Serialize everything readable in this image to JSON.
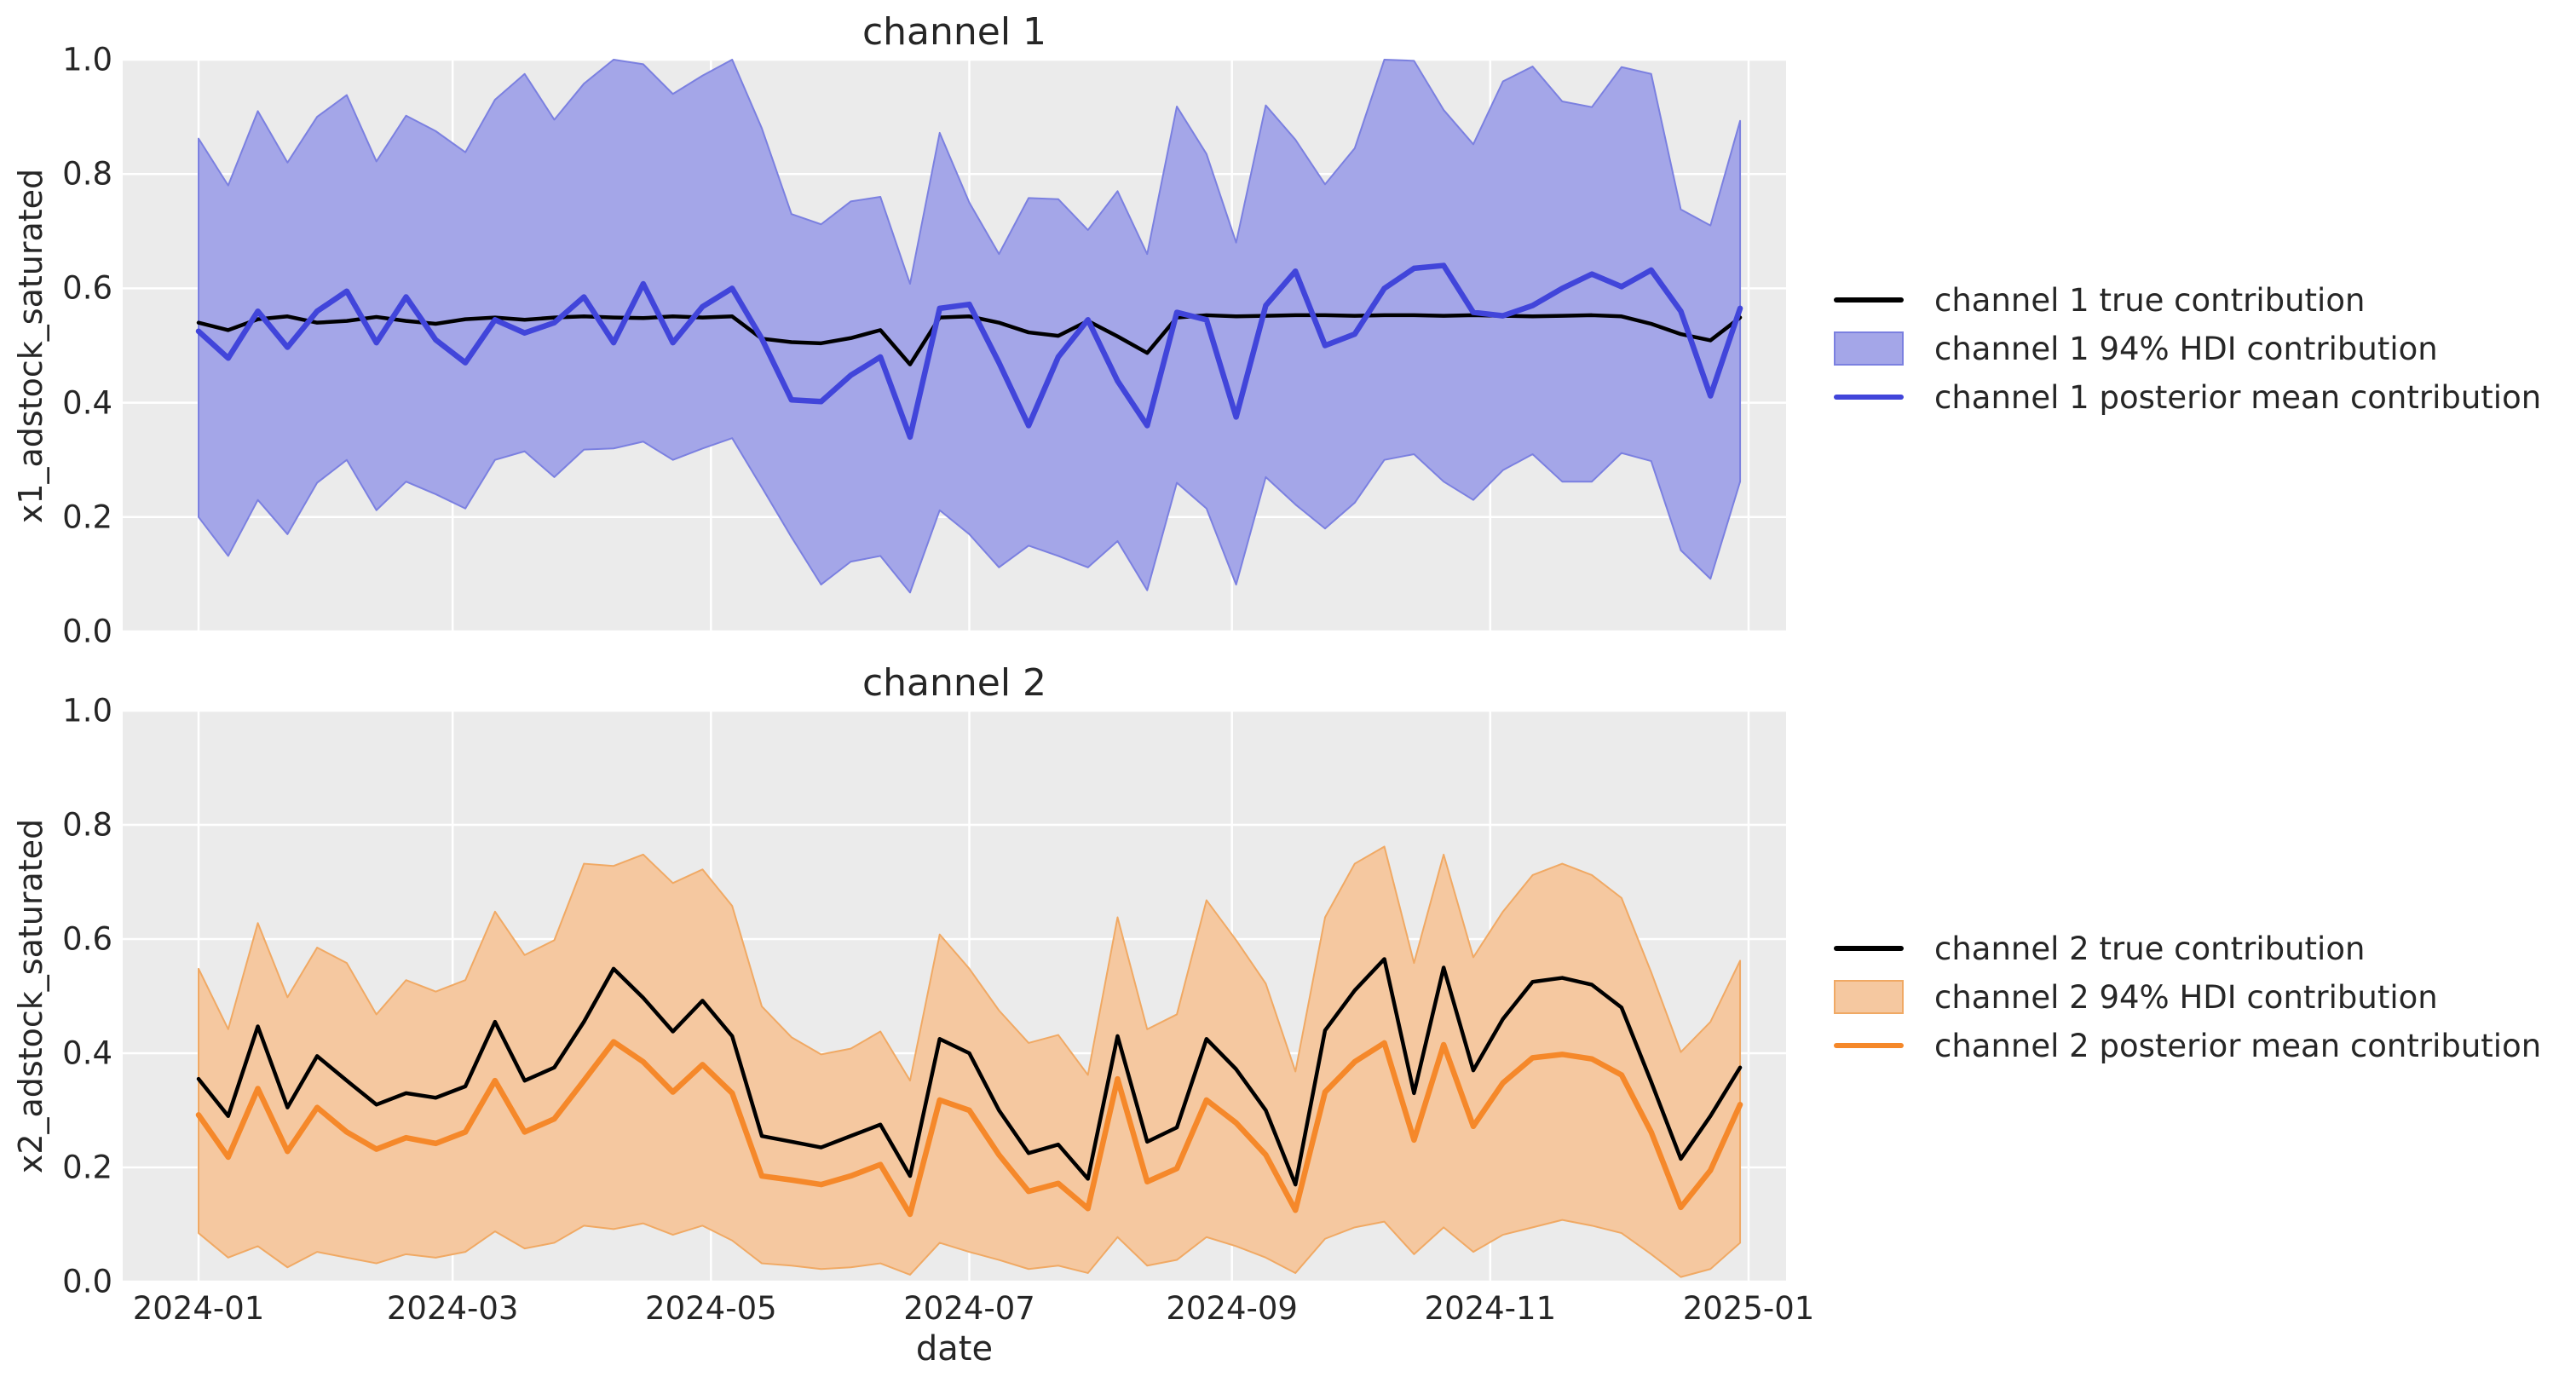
{
  "figure": {
    "background": "#ffffff",
    "plot_background": "#ebebeb",
    "grid_color": "#ffffff",
    "text_color": "#262626"
  },
  "x_ticks": {
    "labels": [
      "2024-01",
      "2024-03",
      "2024-05",
      "2024-07",
      "2024-09",
      "2024-11",
      "2025-01"
    ],
    "day_offsets": [
      0,
      60,
      121,
      182,
      244,
      305,
      366
    ]
  },
  "y_ticks": {
    "labels_top_to_bottom": [
      "1.0",
      "0.8",
      "0.6",
      "0.4",
      "0.2",
      "0.0"
    ],
    "values_top_to_bottom": [
      1.0,
      0.8,
      0.6,
      0.4,
      0.2,
      0.0
    ]
  },
  "chart_data": [
    {
      "type": "line",
      "title": "channel 1",
      "xlabel": "",
      "ylabel": "x1_adstock_saturated",
      "ylim": [
        0.0,
        1.0
      ],
      "grid": true,
      "legend_position": "right-of-plot",
      "x_dates": [
        "2024-01-01",
        "2024-01-08",
        "2024-01-15",
        "2024-01-22",
        "2024-01-29",
        "2024-02-05",
        "2024-02-12",
        "2024-02-19",
        "2024-02-26",
        "2024-03-04",
        "2024-03-11",
        "2024-03-18",
        "2024-03-25",
        "2024-04-01",
        "2024-04-08",
        "2024-04-15",
        "2024-04-22",
        "2024-04-29",
        "2024-05-06",
        "2024-05-13",
        "2024-05-20",
        "2024-05-27",
        "2024-06-03",
        "2024-06-10",
        "2024-06-17",
        "2024-06-24",
        "2024-07-01",
        "2024-07-08",
        "2024-07-15",
        "2024-07-22",
        "2024-07-29",
        "2024-08-05",
        "2024-08-12",
        "2024-08-19",
        "2024-08-26",
        "2024-09-02",
        "2024-09-09",
        "2024-09-16",
        "2024-09-23",
        "2024-09-30",
        "2024-10-07",
        "2024-10-14",
        "2024-10-21",
        "2024-10-28",
        "2024-11-04",
        "2024-11-11",
        "2024-11-18",
        "2024-11-25",
        "2024-12-02",
        "2024-12-09",
        "2024-12-16",
        "2024-12-23",
        "2024-12-30"
      ],
      "series": [
        {
          "name": "channel 1 true contribution",
          "type": "line",
          "color": "#000000",
          "values": [
            0.54,
            0.527,
            0.546,
            0.551,
            0.54,
            0.543,
            0.55,
            0.543,
            0.538,
            0.546,
            0.549,
            0.545,
            0.549,
            0.551,
            0.549,
            0.548,
            0.551,
            0.549,
            0.551,
            0.512,
            0.506,
            0.504,
            0.513,
            0.527,
            0.467,
            0.549,
            0.551,
            0.54,
            0.523,
            0.517,
            0.543,
            0.516,
            0.487,
            0.549,
            0.553,
            0.551,
            0.552,
            0.553,
            0.553,
            0.552,
            0.553,
            0.553,
            0.552,
            0.553,
            0.552,
            0.551,
            0.552,
            0.553,
            0.551,
            0.538,
            0.52,
            0.509,
            0.549
          ]
        },
        {
          "name": "channel 1 94% HDI contribution",
          "type": "band",
          "fill_color": "#a4a6e8",
          "edge_color": "#7b80e0",
          "upper": [
            0.862,
            0.78,
            0.91,
            0.82,
            0.9,
            0.938,
            0.822,
            0.902,
            0.875,
            0.838,
            0.93,
            0.975,
            0.895,
            0.958,
            1.0,
            0.992,
            0.94,
            0.972,
            1.0,
            0.88,
            0.73,
            0.712,
            0.752,
            0.76,
            0.608,
            0.872,
            0.75,
            0.66,
            0.758,
            0.756,
            0.702,
            0.77,
            0.66,
            0.918,
            0.835,
            0.68,
            0.92,
            0.86,
            0.782,
            0.845,
            1.0,
            0.998,
            0.912,
            0.852,
            0.962,
            0.988,
            0.927,
            0.917,
            0.987,
            0.975,
            0.738,
            0.71,
            0.893
          ],
          "lower": [
            0.2,
            0.132,
            0.23,
            0.17,
            0.26,
            0.3,
            0.212,
            0.262,
            0.24,
            0.215,
            0.3,
            0.315,
            0.27,
            0.318,
            0.32,
            0.332,
            0.3,
            0.32,
            0.338,
            0.252,
            0.165,
            0.082,
            0.122,
            0.132,
            0.068,
            0.212,
            0.17,
            0.112,
            0.15,
            0.132,
            0.112,
            0.158,
            0.072,
            0.26,
            0.215,
            0.082,
            0.27,
            0.222,
            0.18,
            0.225,
            0.3,
            0.31,
            0.262,
            0.23,
            0.282,
            0.31,
            0.262,
            0.262,
            0.312,
            0.298,
            0.142,
            0.092,
            0.262
          ]
        },
        {
          "name": "channel 1 posterior mean contribution",
          "type": "line",
          "color": "#4145da",
          "values": [
            0.525,
            0.478,
            0.56,
            0.497,
            0.56,
            0.595,
            0.505,
            0.585,
            0.51,
            0.47,
            0.545,
            0.522,
            0.54,
            0.585,
            0.505,
            0.608,
            0.505,
            0.568,
            0.6,
            0.512,
            0.405,
            0.402,
            0.448,
            0.48,
            0.34,
            0.565,
            0.572,
            0.47,
            0.36,
            0.48,
            0.545,
            0.438,
            0.36,
            0.558,
            0.545,
            0.375,
            0.57,
            0.63,
            0.5,
            0.52,
            0.6,
            0.635,
            0.64,
            0.558,
            0.552,
            0.57,
            0.6,
            0.625,
            0.603,
            0.632,
            0.56,
            0.412,
            0.565
          ]
        }
      ]
    },
    {
      "type": "line",
      "title": "channel 2",
      "xlabel": "date",
      "ylabel": "x2_adstock_saturated",
      "ylim": [
        0.0,
        1.0
      ],
      "grid": true,
      "legend_position": "right-of-plot",
      "x_dates": [
        "2024-01-01",
        "2024-01-08",
        "2024-01-15",
        "2024-01-22",
        "2024-01-29",
        "2024-02-05",
        "2024-02-12",
        "2024-02-19",
        "2024-02-26",
        "2024-03-04",
        "2024-03-11",
        "2024-03-18",
        "2024-03-25",
        "2024-04-01",
        "2024-04-08",
        "2024-04-15",
        "2024-04-22",
        "2024-04-29",
        "2024-05-06",
        "2024-05-13",
        "2024-05-20",
        "2024-05-27",
        "2024-06-03",
        "2024-06-10",
        "2024-06-17",
        "2024-06-24",
        "2024-07-01",
        "2024-07-08",
        "2024-07-15",
        "2024-07-22",
        "2024-07-29",
        "2024-08-05",
        "2024-08-12",
        "2024-08-19",
        "2024-08-26",
        "2024-09-02",
        "2024-09-09",
        "2024-09-16",
        "2024-09-23",
        "2024-09-30",
        "2024-10-07",
        "2024-10-14",
        "2024-10-21",
        "2024-10-28",
        "2024-11-04",
        "2024-11-11",
        "2024-11-18",
        "2024-11-25",
        "2024-12-02",
        "2024-12-09",
        "2024-12-16",
        "2024-12-23",
        "2024-12-30"
      ],
      "series": [
        {
          "name": "channel 2 true contribution",
          "type": "line",
          "color": "#000000",
          "values": [
            0.355,
            0.29,
            0.447,
            0.305,
            0.395,
            0.352,
            0.31,
            0.33,
            0.322,
            0.342,
            0.455,
            0.352,
            0.375,
            0.455,
            0.548,
            0.497,
            0.438,
            0.492,
            0.43,
            0.255,
            0.245,
            0.235,
            0.255,
            0.275,
            0.185,
            0.425,
            0.4,
            0.3,
            0.225,
            0.24,
            0.18,
            0.43,
            0.245,
            0.27,
            0.425,
            0.372,
            0.3,
            0.17,
            0.44,
            0.51,
            0.565,
            0.33,
            0.55,
            0.37,
            0.46,
            0.525,
            0.532,
            0.52,
            0.48,
            0.35,
            0.215,
            0.29,
            0.375
          ]
        },
        {
          "name": "channel 2 94% HDI contribution",
          "type": "band",
          "fill_color": "#f5c8a0",
          "edge_color": "#f0a964",
          "upper": [
            0.548,
            0.442,
            0.628,
            0.498,
            0.585,
            0.558,
            0.468,
            0.528,
            0.508,
            0.528,
            0.648,
            0.572,
            0.598,
            0.732,
            0.728,
            0.748,
            0.698,
            0.722,
            0.658,
            0.482,
            0.428,
            0.398,
            0.408,
            0.438,
            0.352,
            0.608,
            0.548,
            0.475,
            0.418,
            0.432,
            0.362,
            0.638,
            0.442,
            0.468,
            0.668,
            0.598,
            0.522,
            0.368,
            0.638,
            0.732,
            0.762,
            0.558,
            0.748,
            0.568,
            0.648,
            0.712,
            0.732,
            0.712,
            0.672,
            0.542,
            0.402,
            0.455,
            0.562
          ],
          "lower": [
            0.085,
            0.042,
            0.062,
            0.025,
            0.052,
            0.042,
            0.032,
            0.048,
            0.042,
            0.052,
            0.088,
            0.058,
            0.068,
            0.098,
            0.092,
            0.102,
            0.082,
            0.098,
            0.072,
            0.032,
            0.028,
            0.022,
            0.025,
            0.032,
            0.012,
            0.068,
            0.052,
            0.038,
            0.022,
            0.028,
            0.015,
            0.078,
            0.028,
            0.038,
            0.078,
            0.062,
            0.042,
            0.015,
            0.075,
            0.095,
            0.105,
            0.048,
            0.095,
            0.052,
            0.082,
            0.095,
            0.108,
            0.098,
            0.085,
            0.048,
            0.008,
            0.022,
            0.068
          ]
        },
        {
          "name": "channel 2 posterior mean contribution",
          "type": "line",
          "color": "#f5882a",
          "values": [
            0.292,
            0.218,
            0.338,
            0.228,
            0.305,
            0.262,
            0.232,
            0.252,
            0.242,
            0.262,
            0.352,
            0.262,
            0.285,
            0.352,
            0.42,
            0.385,
            0.332,
            0.38,
            0.33,
            0.185,
            0.178,
            0.17,
            0.185,
            0.205,
            0.118,
            0.318,
            0.3,
            0.222,
            0.158,
            0.172,
            0.128,
            0.355,
            0.175,
            0.198,
            0.318,
            0.278,
            0.222,
            0.125,
            0.332,
            0.385,
            0.418,
            0.248,
            0.415,
            0.272,
            0.348,
            0.392,
            0.398,
            0.39,
            0.362,
            0.262,
            0.13,
            0.195,
            0.31
          ]
        }
      ]
    }
  ]
}
